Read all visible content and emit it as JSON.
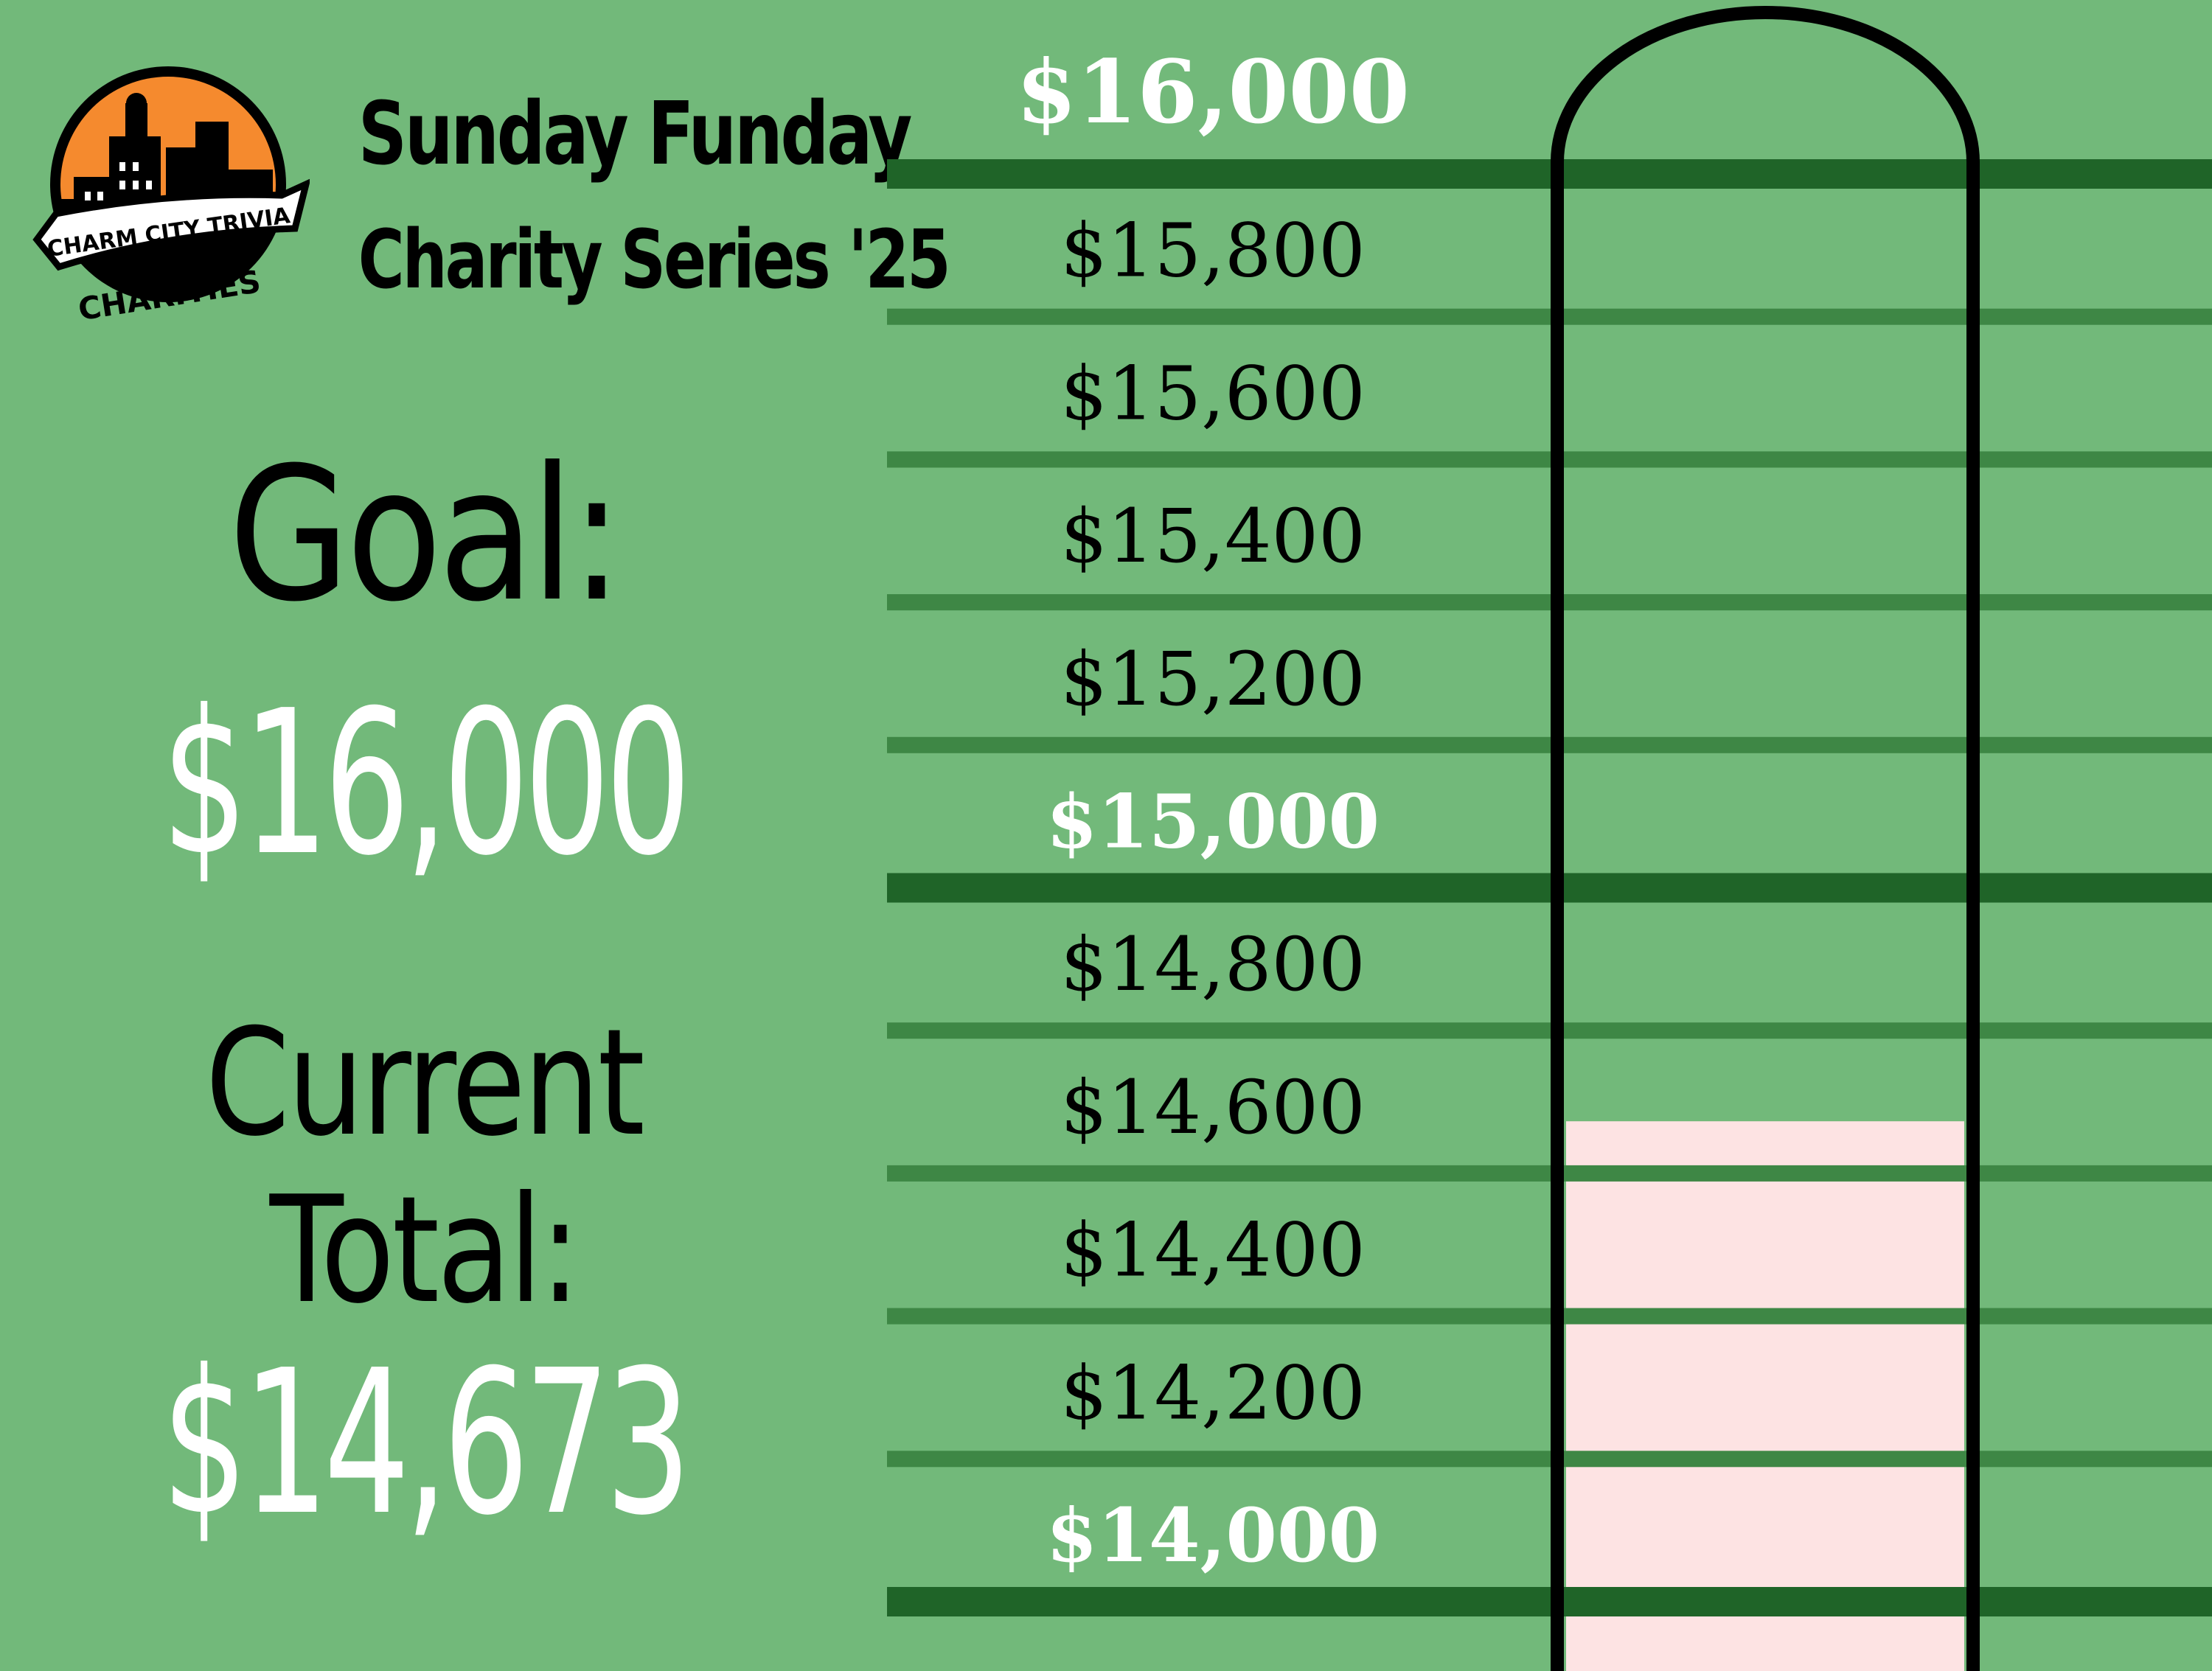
{
  "header": {
    "logo_top_text": "CHARM CITY TRIVIA",
    "logo_bottom_text": "CHARITIES",
    "title_line1": "Sunday Funday",
    "title_line2": "Charity Series '25"
  },
  "summary": {
    "goal_label": "Goal:",
    "goal_amount": "$16,000",
    "current_label_line1": "Current",
    "current_label_line2": "Total:",
    "current_amount": "$14,673"
  },
  "colors": {
    "background": "#72b97a",
    "major_line": "#1f6428",
    "minor_line": "#3e8745",
    "fill": "#fde3e3",
    "tube_outline": "#000000",
    "logo_orange": "#f58a2e"
  },
  "chart_data": {
    "type": "thermometer",
    "goal": 16000,
    "current": 14673,
    "axis_range": [
      14000,
      16000
    ],
    "ticks": [
      {
        "label": "$16,000",
        "value": 16000,
        "major": true
      },
      {
        "label": "$15,800",
        "value": 15800,
        "major": false
      },
      {
        "label": "$15,600",
        "value": 15600,
        "major": false
      },
      {
        "label": "$15,400",
        "value": 15400,
        "major": false
      },
      {
        "label": "$15,200",
        "value": 15200,
        "major": false
      },
      {
        "label": "$15,000",
        "value": 15000,
        "major": true
      },
      {
        "label": "$14,800",
        "value": 14800,
        "major": false
      },
      {
        "label": "$14,600",
        "value": 14600,
        "major": false
      },
      {
        "label": "$14,400",
        "value": 14400,
        "major": false
      },
      {
        "label": "$14,200",
        "value": 14200,
        "major": false
      },
      {
        "label": "$14,000",
        "value": 14000,
        "major": true
      }
    ]
  }
}
